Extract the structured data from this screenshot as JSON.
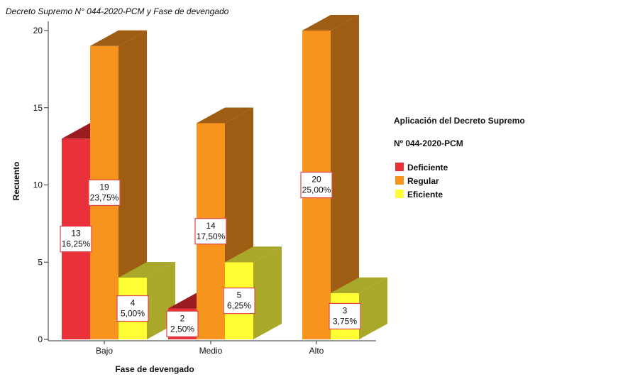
{
  "chart_data": {
    "type": "bar3d",
    "title": "Decreto Supremo N° 044-2020-PCM y Fase de devengado",
    "x_label": "Fase de devengado",
    "y_label": "Recuento",
    "legend_title": [
      "Aplicación del Decreto Supremo",
      "Nº 044-2020-PCM"
    ],
    "categories": [
      "Bajo",
      "Medio",
      "Alto"
    ],
    "series": [
      {
        "name": "Deficiente",
        "color": "#e8313b",
        "side_color": "#9b1c20",
        "values": [
          13,
          2,
          null
        ],
        "percent_labels": [
          "16,25%",
          "2,50%",
          null
        ]
      },
      {
        "name": "Regular",
        "color": "#f7941d",
        "side_color": "#9e5d12",
        "values": [
          19,
          14,
          20
        ],
        "percent_labels": [
          "23,75%",
          "17,50%",
          "25,00%"
        ]
      },
      {
        "name": "Eficiente",
        "color": "#ffff33",
        "side_color": "#a9a82a",
        "values": [
          4,
          5,
          3
        ],
        "percent_labels": [
          "5,00%",
          "6,25%",
          "3,75%"
        ]
      }
    ],
    "ylim": [
      0,
      20
    ],
    "yticks": [
      0,
      5,
      10,
      15,
      20
    ],
    "legend": "right"
  }
}
